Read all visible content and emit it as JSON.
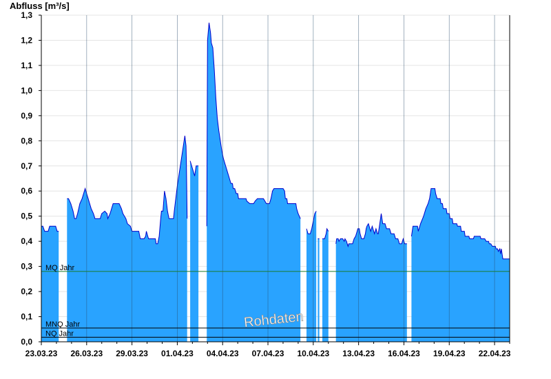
{
  "chart_data": {
    "type": "area",
    "ylabel": "Abfluss [m³/s]",
    "ylim": [
      0,
      1.3
    ],
    "y_ticks": [
      "0,0",
      "0,1",
      "0,2",
      "0,3",
      "0,4",
      "0,5",
      "0,6",
      "0,7",
      "0,8",
      "0,9",
      "1,0",
      "1,1",
      "1,2",
      "1,3"
    ],
    "x_ticks": [
      "23.03.23",
      "26.03.23",
      "29.03.23",
      "01.04.23",
      "04.04.23",
      "07.04.23",
      "10.04.23",
      "13.04.23",
      "16.04.23",
      "19.04.23",
      "22.04.23"
    ],
    "xlim_days": [
      0,
      31
    ],
    "grid": true,
    "watermark": "Rohdaten",
    "colors": {
      "fill": "#29a3ff",
      "line": "#0000cc",
      "mq": "#1a7a2a",
      "ref": "#000000"
    },
    "reference_lines": [
      {
        "label": "MQ Jahr",
        "value": 0.28
      },
      {
        "label": "MNQ Jahr",
        "value": 0.055
      },
      {
        "label": "NQ Jahr",
        "value": 0.018
      }
    ],
    "series": [
      {
        "values": [
          [
            0.0,
            0.46
          ],
          [
            0.1,
            0.46
          ],
          [
            0.22,
            0.44
          ],
          [
            0.45,
            0.44
          ],
          [
            0.55,
            0.46
          ],
          [
            0.95,
            0.46
          ],
          [
            1.05,
            0.44
          ],
          [
            1.15,
            0.44
          ],
          [
            1.15,
            null
          ],
          [
            1.7,
            null
          ],
          [
            1.7,
            0.57
          ],
          [
            1.8,
            0.57
          ],
          [
            1.95,
            0.55
          ],
          [
            2.1,
            0.52
          ],
          [
            2.2,
            0.49
          ],
          [
            2.3,
            0.49
          ],
          [
            2.4,
            0.51
          ],
          [
            2.55,
            0.55
          ],
          [
            2.7,
            0.57
          ],
          [
            2.8,
            0.59
          ],
          [
            2.9,
            0.61
          ],
          [
            3.0,
            0.59
          ],
          [
            3.1,
            0.57
          ],
          [
            3.2,
            0.55
          ],
          [
            3.3,
            0.53
          ],
          [
            3.45,
            0.51
          ],
          [
            3.55,
            0.49
          ],
          [
            3.9,
            0.49
          ],
          [
            4.0,
            0.51
          ],
          [
            4.2,
            0.52
          ],
          [
            4.35,
            0.51
          ],
          [
            4.4,
            0.49
          ],
          [
            4.55,
            0.51
          ],
          [
            4.65,
            0.53
          ],
          [
            4.75,
            0.55
          ],
          [
            5.15,
            0.55
          ],
          [
            5.3,
            0.53
          ],
          [
            5.4,
            0.51
          ],
          [
            5.6,
            0.49
          ],
          [
            5.7,
            0.47
          ],
          [
            5.9,
            0.46
          ],
          [
            6.0,
            0.44
          ],
          [
            6.45,
            0.44
          ],
          [
            6.55,
            0.41
          ],
          [
            6.65,
            0.41
          ],
          [
            6.8,
            0.41
          ],
          [
            6.9,
            0.42
          ],
          [
            6.95,
            0.44
          ],
          [
            7.05,
            0.42
          ],
          [
            7.1,
            0.41
          ],
          [
            7.2,
            0.41
          ],
          [
            7.4,
            0.41
          ],
          [
            7.55,
            0.41
          ],
          [
            7.6,
            0.39
          ],
          [
            7.7,
            0.39
          ],
          [
            7.8,
            0.42
          ],
          [
            7.9,
            0.49
          ],
          [
            7.95,
            0.52
          ],
          [
            8.05,
            0.52
          ],
          [
            8.15,
            0.6
          ],
          [
            8.25,
            0.57
          ],
          [
            8.35,
            0.52
          ],
          [
            8.45,
            0.49
          ],
          [
            8.6,
            0.49
          ],
          [
            8.75,
            0.49
          ],
          [
            8.8,
            0.52
          ],
          [
            8.9,
            0.57
          ],
          [
            9.0,
            0.62
          ],
          [
            9.1,
            0.66
          ],
          [
            9.2,
            0.7
          ],
          [
            9.3,
            0.74
          ],
          [
            9.4,
            0.78
          ],
          [
            9.5,
            0.82
          ],
          [
            9.58,
            0.78
          ],
          [
            9.6,
            0.72
          ],
          [
            9.65,
            0.49
          ],
          [
            9.65,
            null
          ],
          [
            9.85,
            null
          ],
          [
            9.85,
            0.72
          ],
          [
            9.95,
            0.7
          ],
          [
            10.05,
            0.68
          ],
          [
            10.15,
            0.66
          ],
          [
            10.25,
            0.7
          ],
          [
            10.4,
            0.7
          ],
          [
            10.4,
            null
          ],
          [
            10.95,
            null
          ],
          [
            10.95,
            0.46
          ],
          [
            11.0,
            1.2
          ],
          [
            11.1,
            1.27
          ],
          [
            11.2,
            1.23
          ],
          [
            11.25,
            1.19
          ],
          [
            11.35,
            1.17
          ],
          [
            11.45,
            1.08
          ],
          [
            11.55,
            0.97
          ],
          [
            11.65,
            0.89
          ],
          [
            11.75,
            0.84
          ],
          [
            11.85,
            0.8
          ],
          [
            11.95,
            0.76
          ],
          [
            12.05,
            0.73
          ],
          [
            12.15,
            0.71
          ],
          [
            12.25,
            0.69
          ],
          [
            12.35,
            0.67
          ],
          [
            12.45,
            0.65
          ],
          [
            12.55,
            0.63
          ],
          [
            12.65,
            0.63
          ],
          [
            12.7,
            0.61
          ],
          [
            12.8,
            0.61
          ],
          [
            12.9,
            0.59
          ],
          [
            13.0,
            0.59
          ],
          [
            13.05,
            0.57
          ],
          [
            13.55,
            0.57
          ],
          [
            13.6,
            0.56
          ],
          [
            13.8,
            0.55
          ],
          [
            14.05,
            0.55
          ],
          [
            14.15,
            0.56
          ],
          [
            14.3,
            0.57
          ],
          [
            14.7,
            0.57
          ],
          [
            14.8,
            0.56
          ],
          [
            14.9,
            0.55
          ],
          [
            15.1,
            0.55
          ],
          [
            15.2,
            0.57
          ],
          [
            15.3,
            0.6
          ],
          [
            15.4,
            0.61
          ],
          [
            16.0,
            0.61
          ],
          [
            16.1,
            0.6
          ],
          [
            16.15,
            0.57
          ],
          [
            16.25,
            0.57
          ],
          [
            16.3,
            0.55
          ],
          [
            16.85,
            0.55
          ],
          [
            16.9,
            0.53
          ],
          [
            17.0,
            0.51
          ],
          [
            17.15,
            0.49
          ],
          [
            17.15,
            null
          ],
          [
            17.55,
            null
          ],
          [
            17.55,
            0.45
          ],
          [
            17.65,
            0.43
          ],
          [
            17.8,
            0.43
          ],
          [
            17.9,
            0.45
          ],
          [
            18.0,
            0.48
          ],
          [
            18.1,
            0.51
          ],
          [
            18.2,
            0.52
          ],
          [
            18.2,
            null
          ],
          [
            18.3,
            null
          ],
          [
            18.3,
            0.41
          ],
          [
            18.4,
            0.41
          ],
          [
            18.4,
            null
          ],
          [
            18.6,
            null
          ],
          [
            18.6,
            0.41
          ],
          [
            18.75,
            0.41
          ],
          [
            18.85,
            0.43
          ],
          [
            18.9,
            0.45
          ],
          [
            19.0,
            0.44
          ],
          [
            19.0,
            null
          ],
          [
            19.5,
            null
          ],
          [
            19.5,
            0.39
          ],
          [
            19.55,
            0.41
          ],
          [
            19.65,
            0.41
          ],
          [
            19.7,
            0.4
          ],
          [
            19.8,
            0.41
          ],
          [
            19.95,
            0.41
          ],
          [
            20.05,
            0.4
          ],
          [
            20.1,
            0.41
          ],
          [
            20.2,
            0.4
          ],
          [
            20.3,
            0.38
          ],
          [
            20.35,
            0.39
          ],
          [
            20.5,
            0.39
          ],
          [
            20.6,
            0.39
          ],
          [
            20.7,
            0.41
          ],
          [
            20.8,
            0.42
          ],
          [
            20.9,
            0.44
          ],
          [
            20.95,
            0.45
          ],
          [
            21.05,
            0.45
          ],
          [
            21.1,
            0.43
          ],
          [
            21.2,
            0.41
          ],
          [
            21.35,
            0.41
          ],
          [
            21.45,
            0.43
          ],
          [
            21.5,
            0.45
          ],
          [
            21.55,
            0.46
          ],
          [
            21.65,
            0.47
          ],
          [
            21.75,
            0.45
          ],
          [
            21.8,
            0.44
          ],
          [
            21.9,
            0.46
          ],
          [
            22.0,
            0.44
          ],
          [
            22.05,
            0.43
          ],
          [
            22.15,
            0.45
          ],
          [
            22.25,
            0.43
          ],
          [
            22.3,
            0.43
          ],
          [
            22.4,
            0.47
          ],
          [
            22.5,
            0.51
          ],
          [
            22.55,
            0.49
          ],
          [
            22.6,
            0.47
          ],
          [
            22.75,
            0.47
          ],
          [
            22.85,
            0.45
          ],
          [
            23.05,
            0.45
          ],
          [
            23.15,
            0.43
          ],
          [
            23.35,
            0.43
          ],
          [
            23.45,
            0.41
          ],
          [
            23.6,
            0.41
          ],
          [
            23.7,
            0.39
          ],
          [
            23.85,
            0.39
          ],
          [
            23.95,
            0.41
          ],
          [
            24.05,
            0.39
          ],
          [
            24.2,
            0.39
          ],
          [
            24.2,
            null
          ],
          [
            24.5,
            null
          ],
          [
            24.5,
            0.42
          ],
          [
            24.6,
            0.46
          ],
          [
            24.9,
            0.46
          ],
          [
            24.95,
            0.44
          ],
          [
            25.0,
            0.45
          ],
          [
            25.1,
            0.47
          ],
          [
            25.3,
            0.5
          ],
          [
            25.45,
            0.53
          ],
          [
            25.6,
            0.55
          ],
          [
            25.7,
            0.57
          ],
          [
            25.75,
            0.59
          ],
          [
            25.8,
            0.61
          ],
          [
            26.05,
            0.61
          ],
          [
            26.1,
            0.59
          ],
          [
            26.2,
            0.57
          ],
          [
            26.4,
            0.57
          ],
          [
            26.45,
            0.55
          ],
          [
            26.55,
            0.55
          ],
          [
            26.6,
            0.53
          ],
          [
            26.8,
            0.53
          ],
          [
            26.85,
            0.51
          ],
          [
            27.0,
            0.51
          ],
          [
            27.05,
            0.49
          ],
          [
            27.2,
            0.49
          ],
          [
            27.25,
            0.47
          ],
          [
            27.5,
            0.47
          ],
          [
            27.55,
            0.46
          ],
          [
            27.75,
            0.46
          ],
          [
            27.8,
            0.44
          ],
          [
            28.0,
            0.44
          ],
          [
            28.05,
            0.42
          ],
          [
            28.3,
            0.42
          ],
          [
            28.35,
            0.41
          ],
          [
            28.6,
            0.41
          ],
          [
            28.65,
            0.42
          ],
          [
            29.05,
            0.42
          ],
          [
            29.1,
            0.41
          ],
          [
            29.35,
            0.41
          ],
          [
            29.45,
            0.4
          ],
          [
            29.6,
            0.4
          ],
          [
            29.65,
            0.39
          ],
          [
            29.75,
            0.39
          ],
          [
            29.85,
            0.38
          ],
          [
            30.05,
            0.38
          ],
          [
            30.1,
            0.37
          ],
          [
            30.2,
            0.37
          ],
          [
            30.25,
            0.36
          ],
          [
            30.35,
            0.37
          ],
          [
            30.4,
            0.35
          ],
          [
            30.45,
            0.37
          ],
          [
            30.55,
            0.33
          ],
          [
            31.0,
            0.33
          ]
        ]
      }
    ]
  }
}
